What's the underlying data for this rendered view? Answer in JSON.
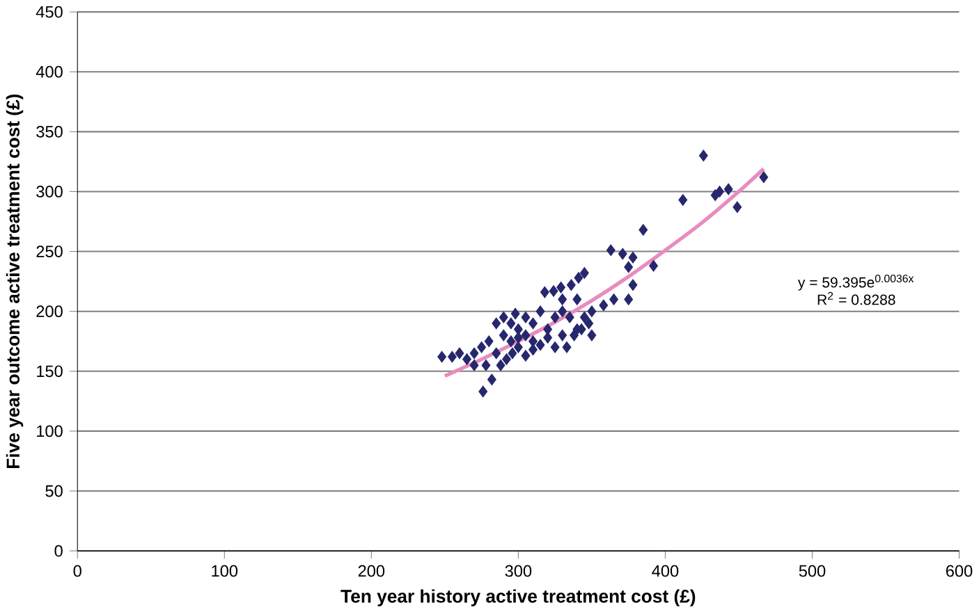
{
  "chart_data": {
    "type": "scatter",
    "xlabel": "Ten year history active treatment cost (£)",
    "ylabel": "Five year outcome active treatment cost (£)",
    "xlim": [
      0,
      600
    ],
    "xticks": [
      0,
      100,
      200,
      300,
      400,
      500,
      600
    ],
    "ylim": [
      0,
      450
    ],
    "yticks": [
      0,
      50,
      100,
      150,
      200,
      250,
      300,
      350,
      400,
      450
    ],
    "grid": "y",
    "marker": "diamond",
    "annotations": [
      "y = 59.395e$^{0.0036x}$",
      "R$^{2}$ = 0.8288"
    ],
    "series": [
      {
        "color": "#27276e",
        "x": [
          426,
          467,
          412,
          437,
          443,
          449,
          434,
          385,
          363,
          371,
          378,
          375,
          378,
          392,
          365,
          375,
          358,
          345,
          341,
          336,
          329,
          324,
          318,
          330,
          340,
          348,
          343,
          338,
          333,
          320,
          310,
          300,
          295,
          290,
          285,
          298,
          305,
          310,
          315,
          325,
          330,
          335,
          280,
          275,
          270,
          260,
          255,
          248,
          265,
          278,
          282,
          276,
          288,
          292,
          296,
          300,
          305,
          310,
          315,
          290,
          295,
          300,
          305,
          320,
          325,
          330,
          340,
          345,
          350,
          285,
          270,
          350
        ],
        "values": [
          330,
          312,
          293,
          300,
          302,
          287,
          297,
          268,
          251,
          248,
          245,
          237,
          222,
          238,
          210,
          210,
          205,
          232,
          228,
          222,
          220,
          217,
          216,
          210,
          210,
          190,
          185,
          180,
          170,
          178,
          175,
          185,
          190,
          195,
          190,
          198,
          195,
          190,
          200,
          195,
          200,
          195,
          175,
          170,
          165,
          165,
          162,
          162,
          160,
          155,
          143,
          133,
          155,
          160,
          165,
          170,
          163,
          168,
          172,
          180,
          175,
          178,
          180,
          185,
          170,
          180,
          185,
          195,
          200,
          165,
          155,
          180
        ]
      },
      {
        "type": "line",
        "color": "#e98bbd",
        "marker": "none",
        "x": [
          250,
          275,
          300,
          325,
          350,
          375,
          400,
          425,
          450,
          467
        ],
        "values": [
          146,
          160,
          175,
          191,
          209,
          229,
          251,
          274,
          300,
          319
        ]
      }
    ]
  }
}
